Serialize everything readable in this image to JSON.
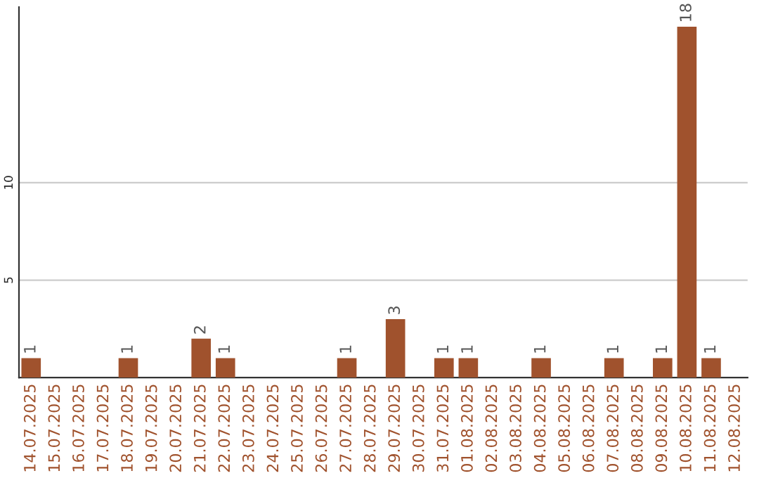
{
  "chart_data": {
    "type": "bar",
    "categories": [
      "14.07.2025",
      "15.07.2025",
      "16.07.2025",
      "17.07.2025",
      "18.07.2025",
      "19.07.2025",
      "20.07.2025",
      "21.07.2025",
      "22.07.2025",
      "23.07.2025",
      "24.07.2025",
      "25.07.2025",
      "26.07.2025",
      "27.07.2025",
      "28.07.2025",
      "29.07.2025",
      "30.07.2025",
      "31.07.2025",
      "01.08.2025",
      "02.08.2025",
      "03.08.2025",
      "04.08.2025",
      "05.08.2025",
      "06.08.2025",
      "07.08.2025",
      "08.08.2025",
      "09.08.2025",
      "10.08.2025",
      "11.08.2025",
      "12.08.2025"
    ],
    "values": [
      1,
      0,
      0,
      0,
      1,
      0,
      0,
      2,
      1,
      0,
      0,
      0,
      0,
      1,
      0,
      3,
      0,
      1,
      1,
      0,
      0,
      1,
      0,
      0,
      1,
      0,
      1,
      18,
      1,
      0
    ],
    "value_labels": [
      "1",
      null,
      null,
      null,
      "1",
      null,
      null,
      "2",
      "1",
      null,
      null,
      null,
      null,
      "1",
      null,
      "3",
      null,
      "1",
      "1",
      null,
      null,
      "1",
      null,
      null,
      "1",
      null,
      "1",
      "18",
      "1",
      null
    ],
    "color": "#a0522d",
    "ylim": [
      0,
      19
    ],
    "yticks": [
      5,
      10
    ],
    "grid": "y"
  }
}
